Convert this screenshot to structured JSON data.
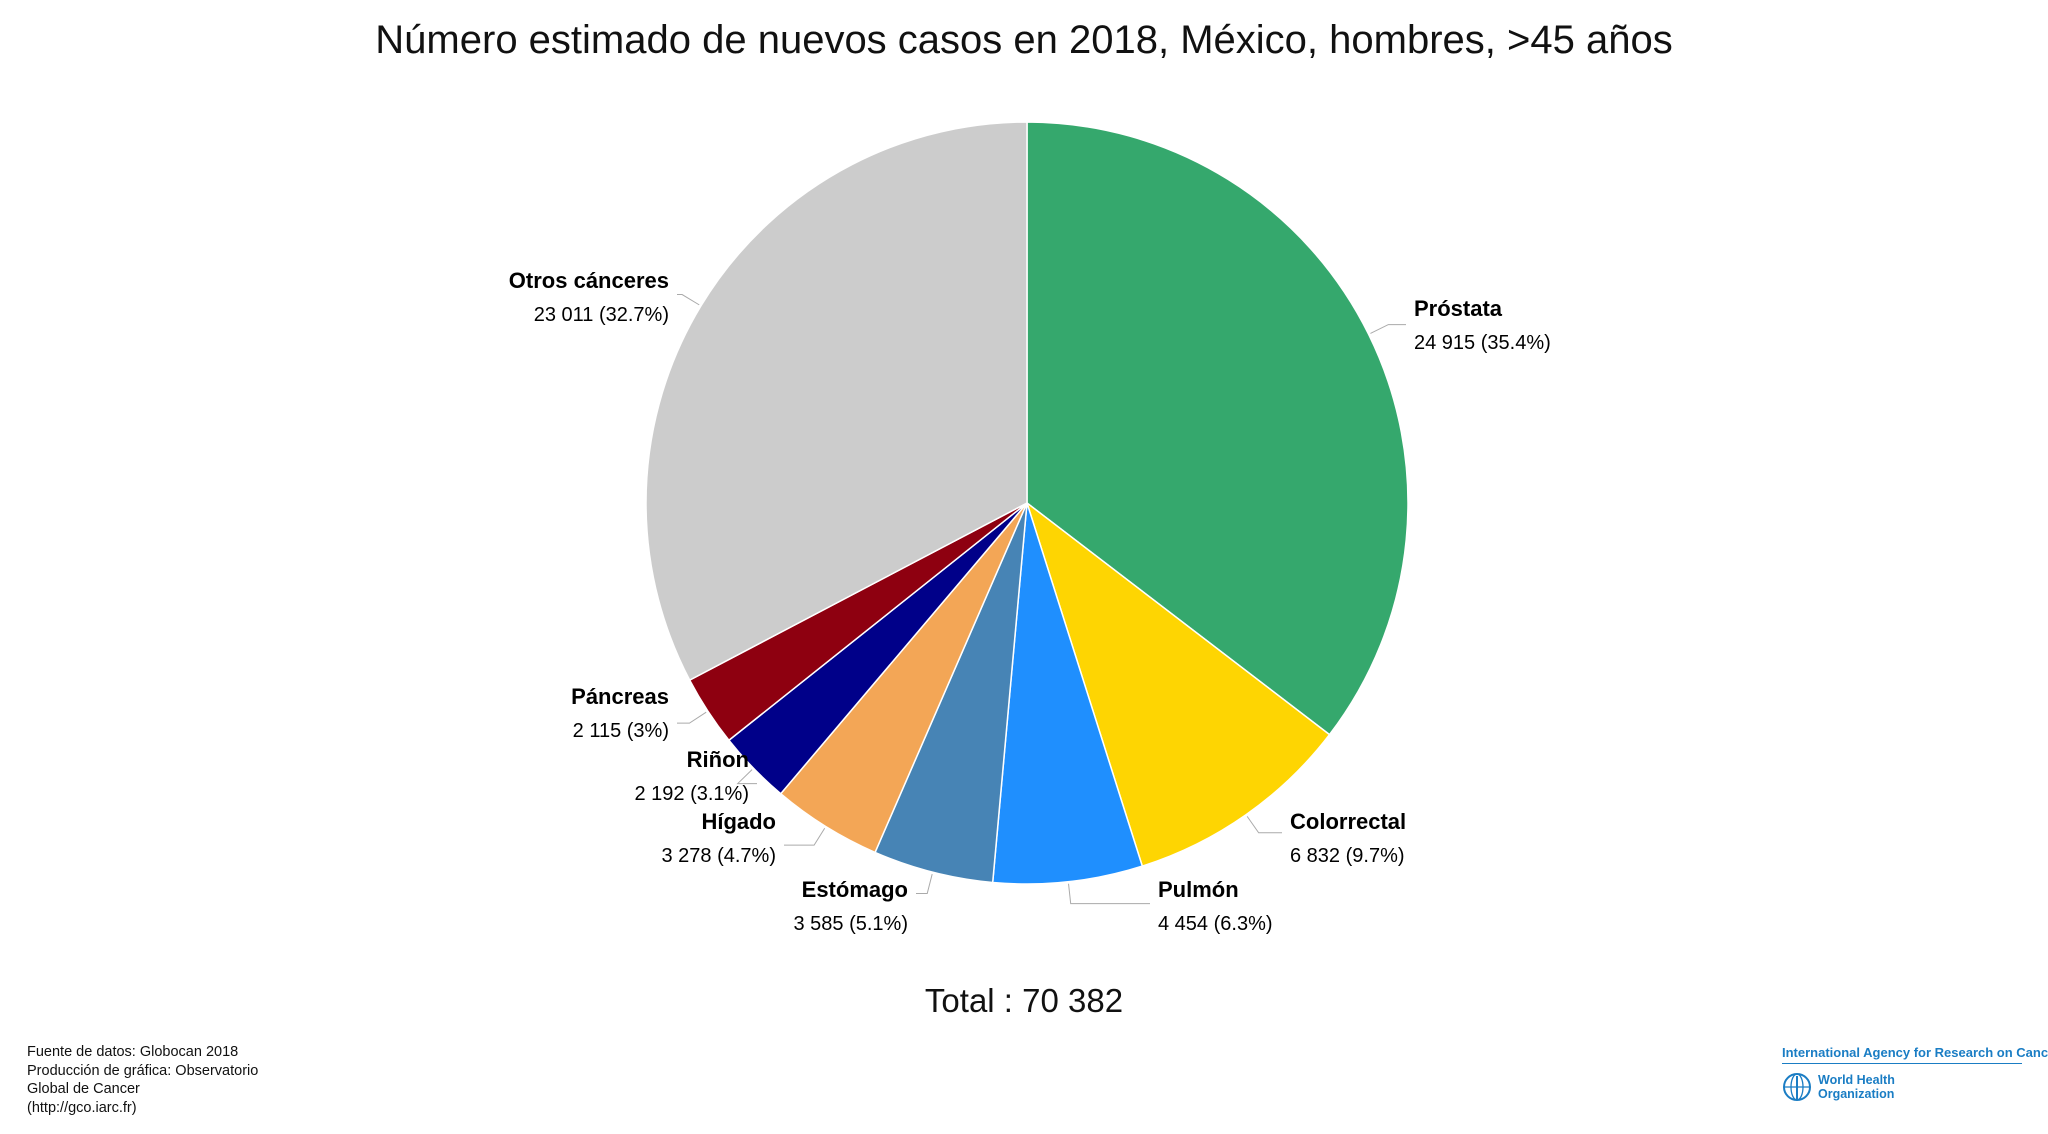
{
  "chart_data": {
    "type": "pie",
    "title": "Número estimado de nuevos casos en 2018, México, hombres, >45 años",
    "total_label": "Total : 70 382",
    "total": 70382,
    "slices": [
      {
        "name": "Próstata",
        "value": 24915,
        "value_label": "24 915 (35.4%)",
        "color": "#35a86d"
      },
      {
        "name": "Colorrectal",
        "value": 6832,
        "value_label": "6 832 (9.7%)",
        "color": "#fed502"
      },
      {
        "name": "Pulmón",
        "value": 4454,
        "value_label": "4 454 (6.3%)",
        "color": "#1f8ffe"
      },
      {
        "name": "Estómago",
        "value": 3585,
        "value_label": "3 585 (5.1%)",
        "color": "#4784b5"
      },
      {
        "name": "Hígado",
        "value": 3278,
        "value_label": "3 278 (4.7%)",
        "color": "#f3a656"
      },
      {
        "name": "Riñon",
        "value": 2192,
        "value_label": "2 192 (3.1%)",
        "color": "#000089"
      },
      {
        "name": "Páncreas",
        "value": 2115,
        "value_label": "2 115 (3%)",
        "color": "#8e0010"
      },
      {
        "name": "Otros cánceres",
        "value": 23011,
        "value_label": "23 011 (32.7%)",
        "color": "#cccccc"
      }
    ]
  },
  "source": {
    "line1": "Fuente de datos: Globocan 2018",
    "line2": "Producción de gráfica: Observatorio",
    "line3": "Global de Cancer",
    "line4": "(http://gco.iarc.fr)"
  },
  "logos": {
    "iarc": "International Agency for Research on Cancer",
    "who_line1": "World Health",
    "who_line2": "Organization",
    "who_icon": "who-emblem-icon"
  }
}
